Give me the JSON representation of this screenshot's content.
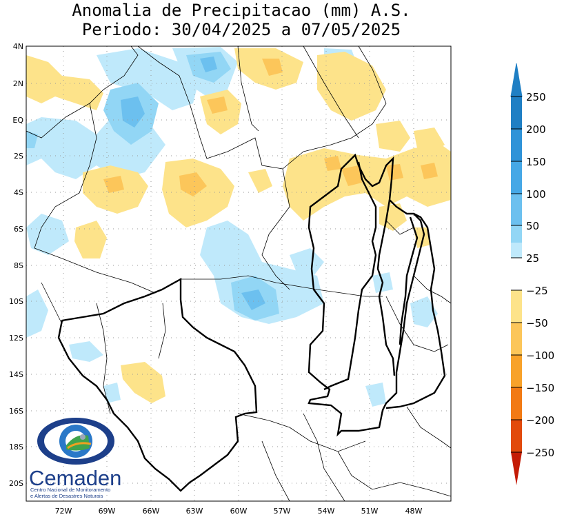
{
  "title_line1": "Anomalia de Precipitacao (mm) A.S.",
  "title_line2": "Periodo: 30/04/2025 a 07/05/2025",
  "lat_labels": [
    "4N",
    "2N",
    "EQ",
    "2S",
    "4S",
    "6S",
    "8S",
    "10S",
    "12S",
    "14S",
    "16S",
    "18S",
    "20S"
  ],
  "lon_labels": [
    "72W",
    "69W",
    "66W",
    "63W",
    "60W",
    "57W",
    "54W",
    "51W",
    "48W"
  ],
  "colorbar": {
    "labels": [
      "250",
      "200",
      "150",
      "100",
      "50",
      "25",
      "−25",
      "−50",
      "−100",
      "−150",
      "−200",
      "−250"
    ],
    "colors": {
      "c250": "#1f7fc4",
      "c200": "#2f93d8",
      "c150": "#46a8e6",
      "c100": "#6cc0ef",
      "c50": "#92d6f5",
      "c25": "#bfe9fb",
      "n25": "#fde38a",
      "n50": "#fcc65a",
      "n100": "#f8a22a",
      "n150": "#f27a14",
      "n200": "#e24a0c",
      "n250": "#c41c06"
    }
  },
  "logo": {
    "name": "Cemaden",
    "sub1": "Centro Nacional de Monitoramento",
    "sub2": "e Alertas de Desastres Naturais"
  }
}
